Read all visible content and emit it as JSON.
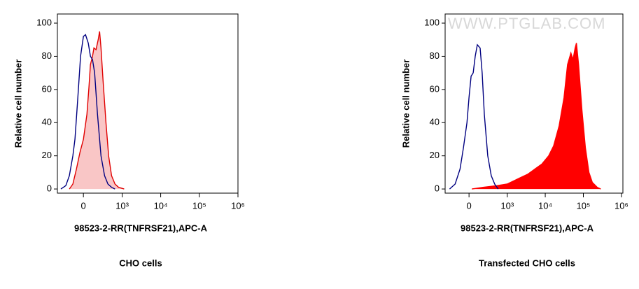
{
  "chart_data": [
    {
      "type": "area",
      "xscale": "biexponential",
      "xlabel": "98523-2-RR(TNFRSF21),APC-A",
      "ylabel": "Relative cell number",
      "caption": "CHO cells",
      "xlim": [
        -450,
        1000000
      ],
      "ylim": [
        -2.5,
        105.5
      ],
      "xticks": [
        0,
        {
          "value": 1000,
          "label": "10³"
        },
        {
          "value": 10000,
          "label": "10⁴"
        },
        {
          "value": 100000,
          "label": "10⁵"
        },
        {
          "value": 1000000,
          "label": "10⁶"
        }
      ],
      "yticks": [
        0,
        20,
        40,
        60,
        80,
        100
      ],
      "series": [
        {
          "color": "#e00000",
          "fill": "#f9c6c6",
          "x": [
            -188,
            -134,
            -86,
            -42,
            0,
            42,
            68,
            86,
            114,
            134,
            165,
            200,
            224,
            250,
            292,
            357,
            428,
            516,
            642,
            800,
            1125
          ],
          "values": [
            0,
            3,
            12,
            22,
            30,
            45,
            62,
            75,
            80,
            85,
            84,
            90,
            95,
            85,
            65,
            40,
            20,
            8,
            3,
            1,
            0
          ]
        },
        {
          "color": "#000080",
          "x": [
            -357,
            -250,
            -188,
            -134,
            -105,
            -68,
            -34,
            0,
            25,
            59,
            86,
            114,
            144,
            188,
            250,
            324,
            408,
            516,
            642
          ],
          "values": [
            0,
            2,
            8,
            20,
            30,
            55,
            80,
            92,
            93,
            88,
            80,
            78,
            70,
            45,
            20,
            8,
            3,
            1,
            0
          ]
        }
      ]
    },
    {
      "type": "area",
      "xscale": "biexponential",
      "xlabel": "98523-2-RR(TNFRSF21),APC-A",
      "ylabel": "Relative cell number",
      "caption": "Transfected CHO cells",
      "watermark": "WWW.PTGLAB.COM",
      "xlim": [
        -400,
        1090000
      ],
      "ylim": [
        -2.5,
        105.5
      ],
      "xticks": [
        0,
        {
          "value": 1000,
          "label": "10³"
        },
        {
          "value": 10000,
          "label": "10⁴"
        },
        {
          "value": 100000,
          "label": "10⁵"
        },
        {
          "value": 1000000,
          "label": "10⁶"
        }
      ],
      "yticks": [
        0,
        20,
        40,
        60,
        80,
        100
      ],
      "series": [
        {
          "color": "#ff0000",
          "fill": "#ff0000",
          "x": [
            34,
            188,
            516,
            990,
            1512,
            2300,
            3520,
            5340,
            8140,
            12300,
            16600,
            23000,
            31000,
            38400,
            47000,
            53400,
            60800,
            65800,
            75000,
            91600,
            113000,
            140000,
            172000,
            232000,
            286000
          ],
          "values": [
            0,
            1,
            2,
            3,
            5,
            7,
            9,
            12,
            15,
            20,
            26,
            38,
            55,
            75,
            82,
            78,
            85,
            88,
            75,
            48,
            25,
            10,
            4,
            1,
            0
          ]
        },
        {
          "color": "#000080",
          "x": [
            -292,
            -188,
            -114,
            -68,
            -25,
            0,
            25,
            51,
            77,
            105,
            144,
            176,
            212,
            278,
            357,
            450,
            564
          ],
          "values": [
            0,
            3,
            12,
            25,
            40,
            55,
            68,
            70,
            80,
            87,
            85,
            70,
            45,
            20,
            8,
            3,
            0
          ]
        }
      ]
    }
  ]
}
